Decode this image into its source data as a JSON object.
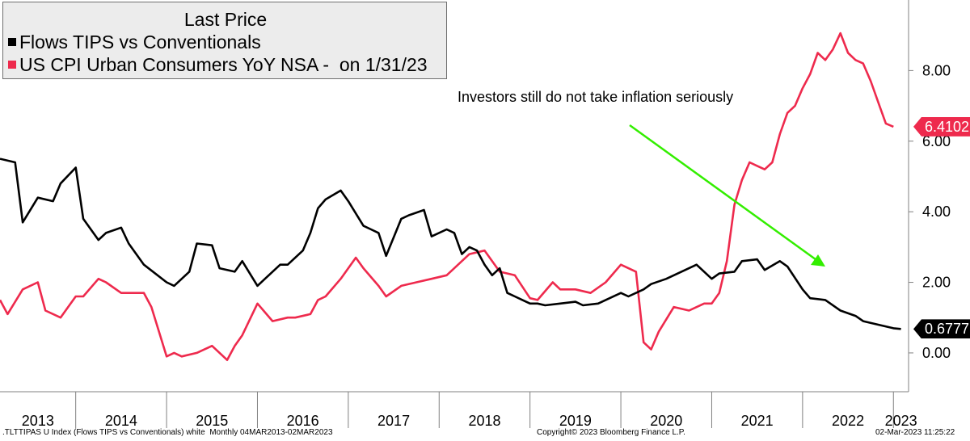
{
  "legend": {
    "title": "Last Price",
    "series1_label": "Flows TIPS vs Conventionals",
    "series2_label": "US CPI Urban Consumers YoY NSA -  on 1/31/23"
  },
  "annotation": "Investors still do not take inflation seriously",
  "colors": {
    "series1": "#000000",
    "series2": "#ee2a4d",
    "arrow": "#33ee00",
    "flag1": "#000000",
    "flag2": "#ee2a4d"
  },
  "footer": {
    "left": ".TLTTIPAS U Index (Flows TIPS vs Conventionals) white  Monthly 04MAR2013-02MAR2023",
    "center": "Copyright© 2023 Bloomberg Finance L.P.",
    "right": "02-Mar-2023 11:25:22"
  },
  "chart_data": {
    "type": "line",
    "title": "Last Price",
    "ylim": [
      -1.1,
      10.0
    ],
    "yticks": [
      "8.00",
      "6.00",
      "4.00",
      "2.00",
      "0.00"
    ],
    "ytick_values": [
      8,
      6,
      4,
      2,
      0
    ],
    "xlim": [
      "2013-03",
      "2023-03"
    ],
    "x_labels": [
      "2013",
      "2014",
      "2015",
      "2016",
      "2017",
      "2018",
      "2019",
      "2020",
      "2021",
      "2022",
      "2023"
    ],
    "grid": false,
    "legend_position": "top-left",
    "last_values": {
      "series1": "0.6777",
      "series2": "6.4102"
    },
    "series": [
      {
        "name": "Flows TIPS vs Conventionals",
        "x": [
          "2013-03",
          "2013-05",
          "2013-06",
          "2013-08",
          "2013-10",
          "2013-11",
          "2014-01",
          "2014-02",
          "2014-04",
          "2014-05",
          "2014-07",
          "2014-08",
          "2014-10",
          "2015-01",
          "2015-02",
          "2015-04",
          "2015-05",
          "2015-07",
          "2015-08",
          "2015-10",
          "2015-11",
          "2016-01",
          "2016-02",
          "2016-04",
          "2016-05",
          "2016-07",
          "2016-08",
          "2016-09",
          "2016-10",
          "2016-12",
          "2017-01",
          "2017-03",
          "2017-04",
          "2017-05",
          "2017-06",
          "2017-08",
          "2017-09",
          "2017-11",
          "2017-12",
          "2018-02",
          "2018-03",
          "2018-04",
          "2018-05",
          "2018-06",
          "2018-07",
          "2018-08",
          "2018-09",
          "2018-10",
          "2018-11",
          "2018-12",
          "2019-01",
          "2019-02",
          "2019-03",
          "2019-05",
          "2019-07",
          "2019-08",
          "2019-10",
          "2019-11",
          "2020-01",
          "2020-02",
          "2020-04",
          "2020-05",
          "2020-07",
          "2020-09",
          "2020-11",
          "2021-01",
          "2021-02",
          "2021-04",
          "2021-05",
          "2021-07",
          "2021-08",
          "2021-10",
          "2021-11",
          "2022-01",
          "2022-02",
          "2022-04",
          "2022-06",
          "2022-08",
          "2022-09",
          "2022-11",
          "2023-01",
          "2023-02"
        ],
        "values": [
          5.5,
          5.4,
          3.7,
          4.4,
          4.3,
          4.8,
          5.25,
          3.8,
          3.2,
          3.4,
          3.55,
          3.1,
          2.5,
          2.0,
          1.9,
          2.3,
          3.1,
          3.05,
          2.4,
          2.3,
          2.6,
          1.9,
          2.1,
          2.5,
          2.5,
          2.9,
          3.4,
          4.1,
          4.35,
          4.6,
          4.3,
          3.6,
          3.5,
          3.4,
          2.75,
          3.8,
          3.9,
          4.05,
          3.3,
          3.5,
          3.4,
          2.8,
          3.0,
          2.9,
          2.5,
          2.2,
          2.4,
          1.7,
          1.6,
          1.5,
          1.4,
          1.4,
          1.35,
          1.4,
          1.45,
          1.35,
          1.4,
          1.5,
          1.7,
          1.6,
          1.8,
          1.95,
          2.1,
          2.3,
          2.5,
          2.1,
          2.25,
          2.3,
          2.6,
          2.65,
          2.35,
          2.6,
          2.45,
          1.8,
          1.55,
          1.5,
          1.2,
          1.05,
          0.9,
          0.8,
          0.7,
          0.6777
        ]
      },
      {
        "name": "US CPI Urban Consumers YoY NSA -  on 1/31/23",
        "x": [
          "2013-03",
          "2013-04",
          "2013-06",
          "2013-08",
          "2013-09",
          "2013-11",
          "2014-01",
          "2014-02",
          "2014-04",
          "2014-05",
          "2014-07",
          "2014-08",
          "2014-10",
          "2014-11",
          "2015-01",
          "2015-02",
          "2015-03",
          "2015-05",
          "2015-07",
          "2015-09",
          "2015-10",
          "2015-11",
          "2016-01",
          "2016-03",
          "2016-05",
          "2016-06",
          "2016-08",
          "2016-09",
          "2016-10",
          "2016-12",
          "2017-02",
          "2017-03",
          "2017-05",
          "2017-06",
          "2017-08",
          "2017-10",
          "2017-12",
          "2018-02",
          "2018-03",
          "2018-05",
          "2018-07",
          "2018-09",
          "2018-11",
          "2019-01",
          "2019-02",
          "2019-04",
          "2019-05",
          "2019-07",
          "2019-09",
          "2019-11",
          "2020-01",
          "2020-03",
          "2020-04",
          "2020-05",
          "2020-06",
          "2020-08",
          "2020-10",
          "2020-12",
          "2021-01",
          "2021-02",
          "2021-03",
          "2021-04",
          "2021-05",
          "2021-06",
          "2021-07",
          "2021-08",
          "2021-09",
          "2021-10",
          "2021-11",
          "2021-12",
          "2022-01",
          "2022-02",
          "2022-03",
          "2022-04",
          "2022-05",
          "2022-06",
          "2022-07",
          "2022-08",
          "2022-09",
          "2022-10",
          "2022-11",
          "2022-12",
          "2023-01"
        ],
        "values": [
          1.5,
          1.1,
          1.8,
          2.0,
          1.2,
          1.0,
          1.6,
          1.6,
          2.1,
          2.0,
          1.7,
          1.7,
          1.7,
          1.3,
          -0.1,
          0.0,
          -0.1,
          0.0,
          0.2,
          -0.2,
          0.2,
          0.5,
          1.4,
          0.9,
          1.0,
          1.0,
          1.1,
          1.5,
          1.6,
          2.1,
          2.7,
          2.4,
          1.9,
          1.6,
          1.9,
          2.0,
          2.1,
          2.2,
          2.4,
          2.8,
          2.9,
          2.3,
          2.2,
          1.55,
          1.5,
          2.0,
          1.8,
          1.8,
          1.7,
          2.0,
          2.5,
          2.3,
          0.3,
          0.1,
          0.6,
          1.3,
          1.2,
          1.4,
          1.4,
          1.7,
          2.6,
          4.2,
          4.9,
          5.4,
          5.3,
          5.2,
          5.4,
          6.2,
          6.8,
          7.0,
          7.5,
          7.9,
          8.5,
          8.3,
          8.6,
          9.06,
          8.5,
          8.3,
          8.2,
          7.7,
          7.1,
          6.5,
          6.4102
        ]
      }
    ]
  }
}
